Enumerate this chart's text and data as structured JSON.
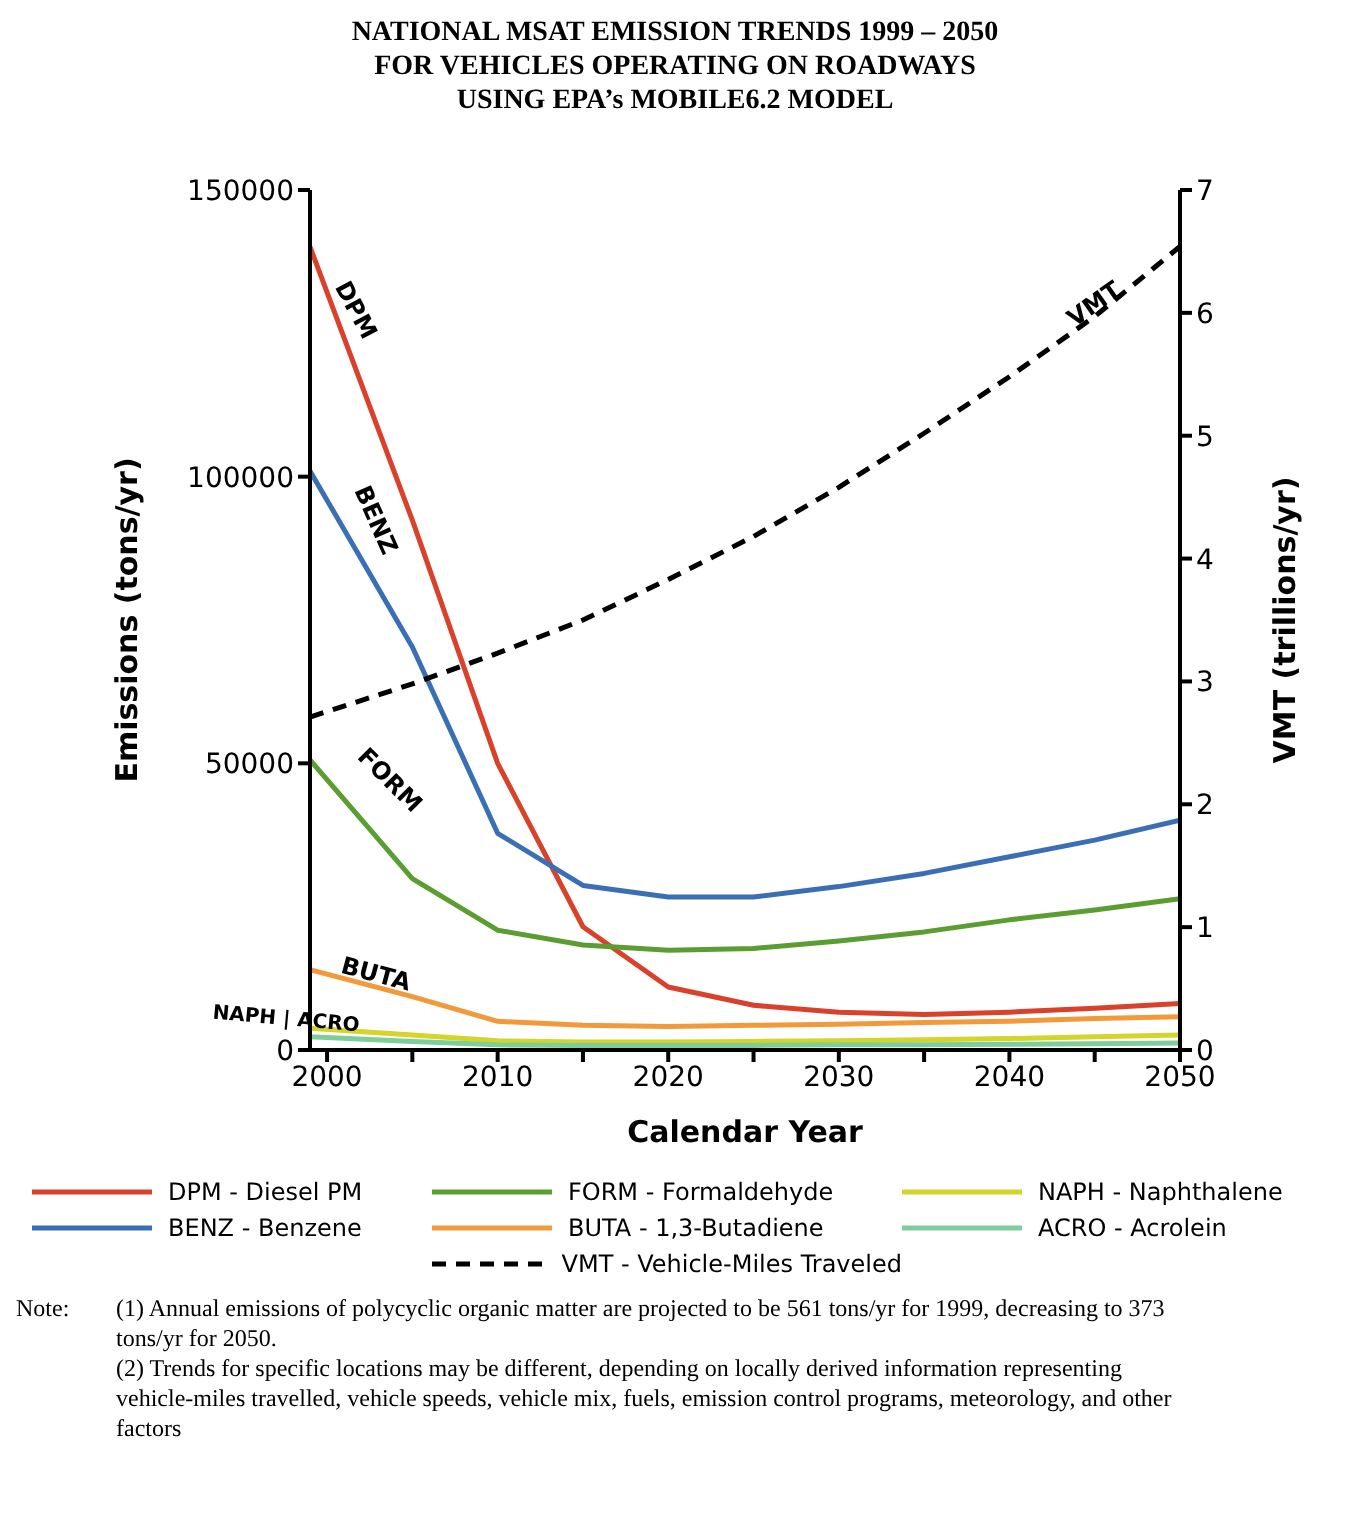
{
  "chart_data": {
    "type": "line",
    "title": "NATIONAL MSAT EMISSION TRENDS 1999 – 2050\nFOR VEHICLES OPERATING ON ROADWAYS\nUSING EPA’s MOBILE6.2 MODEL",
    "xlabel": "Calendar Year",
    "ylabel": "Emissions (tons/yr)",
    "y2label": "VMT (trillions/yr)",
    "x": [
      1999,
      2005,
      2010,
      2015,
      2020,
      2025,
      2030,
      2035,
      2040,
      2045,
      2050
    ],
    "series": [
      {
        "name": "DPM - Diesel PM",
        "color": "#d9412b",
        "values": [
          140100,
          92400,
          50000,
          21500,
          11000,
          7800,
          6600,
          6200,
          6600,
          7300,
          8100
        ]
      },
      {
        "name": "FORM - Formaldehyde",
        "color": "#5a9e32",
        "values": [
          50600,
          29900,
          20900,
          18300,
          17400,
          17700,
          19000,
          20600,
          22700,
          24400,
          26400
        ]
      },
      {
        "name": "NAPH - Naphthalene",
        "color": "#d4d42a",
        "values": [
          3800,
          2600,
          1600,
          1400,
          1400,
          1500,
          1600,
          1800,
          2000,
          2300,
          2600
        ]
      },
      {
        "name": "BENZ - Benzene",
        "color": "#3a6fb5",
        "values": [
          101000,
          70300,
          37800,
          28700,
          26700,
          26700,
          28500,
          30800,
          33700,
          36600,
          40100
        ]
      },
      {
        "name": "BUTA - 1,3-Butadiene",
        "color": "#f29a3a",
        "values": [
          14000,
          9300,
          5000,
          4300,
          4100,
          4300,
          4500,
          4800,
          5000,
          5500,
          5800
        ]
      },
      {
        "name": "ACRO - Acrolein",
        "color": "#7ccf9a",
        "values": [
          2300,
          1500,
          900,
          800,
          800,
          800,
          900,
          900,
          1000,
          1100,
          1200
        ]
      },
      {
        "name": "VMT - Vehicle-Miles Traveled",
        "color": "#000000",
        "axis": "y2",
        "line_style": "dashed",
        "values": [
          2.71,
          2.98,
          3.23,
          3.5,
          3.83,
          4.18,
          4.58,
          5.02,
          5.48,
          5.97,
          6.54
        ]
      }
    ],
    "xlim": [
      1999,
      2050
    ],
    "xticks": [
      2000,
      {
        "value": 2005,
        "label": null
      },
      2010,
      {
        "value": 2015,
        "label": null
      },
      2020,
      {
        "value": 2025,
        "label": null
      },
      2030,
      {
        "value": 2035,
        "label": null
      },
      2040,
      {
        "value": 2045,
        "label": null
      },
      2050
    ],
    "ylim": [
      0,
      150000
    ],
    "yticks": [
      0,
      50000,
      100000,
      150000
    ],
    "y2lim": [
      0,
      7
    ],
    "y2ticks": [
      0,
      1,
      2,
      3,
      4,
      5,
      6,
      7
    ],
    "grid": false,
    "legend": "bottom",
    "marker": "none",
    "line_style": "solid",
    "annotations": [
      "DPM",
      "BENZ",
      "FORM",
      "BUTA",
      "NAPH | ACRO",
      "VMT",
      "Note:",
      "(1) Annual emissions of polycyclic organic matter are projected to be 561 tons/yr for 1999, decreasing to 373 tons/yr for 2050.",
      "(2)  Trends for specific locations may be different, depending on locally derived information representing vehicle-miles travelled, vehicle speeds, vehicle mix, fuels, emission control programs, meteorology, and other factors"
    ]
  }
}
